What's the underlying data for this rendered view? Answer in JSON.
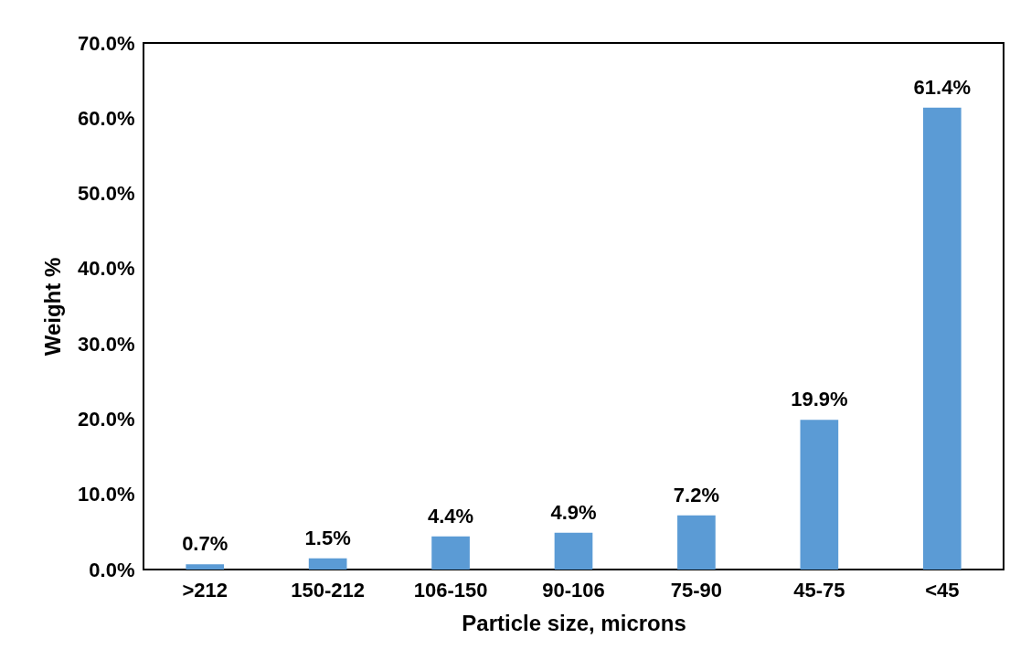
{
  "chart_data": {
    "type": "bar",
    "xlabel": "Particle size, microns",
    "ylabel": "Weight %",
    "categories": [
      ">212",
      "150-212",
      "106-150",
      "90-106",
      "75-90",
      "45-75",
      "<45"
    ],
    "values": [
      0.7,
      1.5,
      4.4,
      4.9,
      7.2,
      19.9,
      61.4
    ],
    "value_labels": [
      "0.7%",
      "1.5%",
      "4.4%",
      "4.9%",
      "7.2%",
      "19.9%",
      "61.4%"
    ],
    "color": "#5b9bd5",
    "ylim": [
      0,
      70
    ],
    "yticks": [
      {
        "value": 0,
        "label": "0.0%"
      },
      {
        "value": 10,
        "label": "10.0%"
      },
      {
        "value": 20,
        "label": "20.0%"
      },
      {
        "value": 30,
        "label": "30.0%"
      },
      {
        "value": 40,
        "label": "40.0%"
      },
      {
        "value": 50,
        "label": "50.0%"
      },
      {
        "value": 60,
        "label": "60.0%"
      },
      {
        "value": 70,
        "label": "70.0%"
      }
    ],
    "grid": false
  }
}
